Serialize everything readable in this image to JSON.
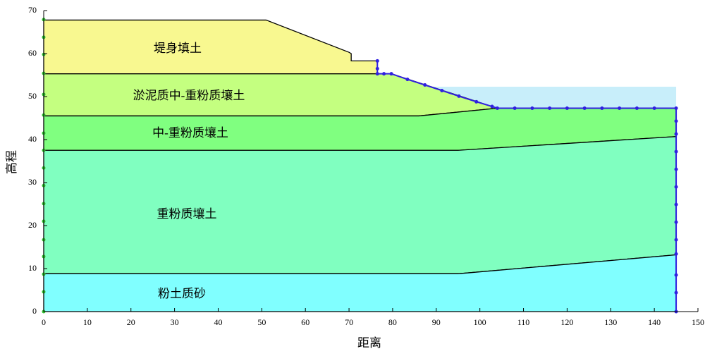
{
  "chart_data": {
    "type": "section",
    "x_label": "距离",
    "y_label": "高程",
    "xlim": [
      0,
      150
    ],
    "ylim": [
      0,
      70
    ],
    "xticks": [
      0,
      10,
      20,
      30,
      40,
      50,
      60,
      70,
      80,
      90,
      100,
      110,
      120,
      130,
      140,
      150
    ],
    "yticks": [
      0,
      10,
      20,
      30,
      40,
      50,
      60,
      70
    ],
    "water": {
      "color": "#c8eefa",
      "points": [
        [
          88.8,
          52.3
        ],
        [
          145,
          52.3
        ],
        [
          145,
          47.3
        ],
        [
          104,
          47.3
        ]
      ]
    },
    "layers": [
      {
        "name": "堤身填土",
        "color": "#f8f890",
        "points": [
          [
            0,
            55.3
          ],
          [
            0,
            67.8
          ],
          [
            51,
            67.8
          ],
          [
            70,
            60.3
          ],
          [
            70.5,
            60
          ],
          [
            70.5,
            58.3
          ],
          [
            76.5,
            58.3
          ],
          [
            76.5,
            55.3
          ]
        ]
      },
      {
        "name": "淤泥质中-重粉质壤土",
        "color": "#c4ff80",
        "points": [
          [
            0,
            45.5
          ],
          [
            0,
            55.3
          ],
          [
            79.7,
            55.3
          ],
          [
            104,
            47.3
          ],
          [
            86,
            45.5
          ]
        ]
      },
      {
        "name": "中-重粉质壤土",
        "color": "#80ff80",
        "points": [
          [
            0,
            37.5
          ],
          [
            0,
            45.5
          ],
          [
            86,
            45.5
          ],
          [
            104,
            47.3
          ],
          [
            145,
            47.3
          ],
          [
            145,
            40.7
          ],
          [
            95,
            37.5
          ]
        ]
      },
      {
        "name": "重粉质壤土",
        "color": "#80ffc0",
        "points": [
          [
            0,
            8.8
          ],
          [
            0,
            37.5
          ],
          [
            95,
            37.5
          ],
          [
            145,
            40.7
          ],
          [
            145,
            13.2
          ],
          [
            95,
            8.8
          ]
        ]
      },
      {
        "name": "粉土质砂",
        "color": "#80ffff",
        "points": [
          [
            0,
            0
          ],
          [
            0,
            8.8
          ],
          [
            95,
            8.8
          ],
          [
            145,
            13.2
          ],
          [
            145,
            0
          ]
        ]
      }
    ],
    "phreatic": {
      "color": "#3020e0",
      "points": [
        [
          76.5,
          58.3
        ],
        [
          76.5,
          56.5
        ],
        [
          76.5,
          55.3
        ],
        [
          78,
          55.3
        ],
        [
          79.7,
          55.3
        ],
        [
          83.4,
          54
        ],
        [
          87.4,
          52.7
        ],
        [
          91.3,
          51.4
        ],
        [
          95.2,
          50.1
        ],
        [
          99.2,
          48.8
        ],
        [
          102.8,
          47.7
        ],
        [
          104,
          47.3
        ],
        [
          108,
          47.3
        ],
        [
          112,
          47.3
        ],
        [
          116,
          47.3
        ],
        [
          120,
          47.3
        ],
        [
          124,
          47.3
        ],
        [
          128,
          47.3
        ],
        [
          132,
          47.3
        ],
        [
          136,
          47.3
        ],
        [
          140,
          47.3
        ],
        [
          145,
          47.3
        ],
        [
          145,
          44.3
        ],
        [
          145,
          41.3
        ],
        [
          145,
          37.2
        ],
        [
          145,
          33.1
        ],
        [
          145,
          29
        ],
        [
          145,
          24.9
        ],
        [
          145,
          20.8
        ],
        [
          145,
          16.7
        ],
        [
          145,
          13.4
        ],
        [
          145,
          8.5
        ],
        [
          145,
          4.4
        ],
        [
          145,
          0
        ]
      ]
    },
    "boundary_nodes": {
      "color": "#30c030",
      "x": 0,
      "y": [
        67.9,
        63.8,
        59.8,
        55.4,
        50.5,
        45.7,
        41.5,
        37.5,
        33.4,
        29.3,
        25.1,
        21,
        16.7,
        12.8,
        8.7,
        4.6,
        0
      ]
    }
  }
}
